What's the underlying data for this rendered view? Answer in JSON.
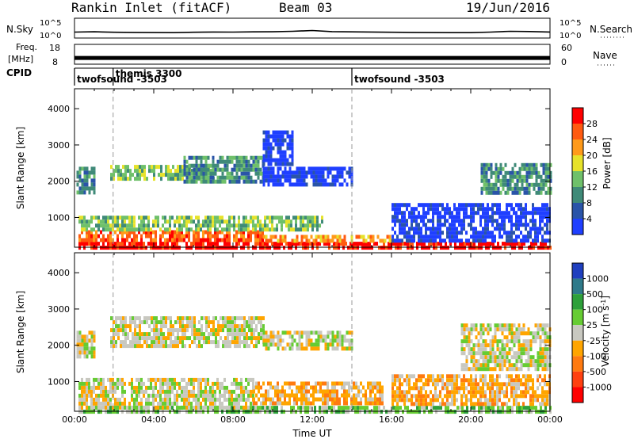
{
  "header": {
    "station": "Rankin Inlet (fitACF)",
    "beam": "Beam 03",
    "date": "19/Jun/2016"
  },
  "chart_data": [
    {
      "type": "line",
      "panel": "noise",
      "left_label": "N.Sky",
      "right_label": "N.Search",
      "left_ticks": [
        "10^5",
        "10^0"
      ],
      "right_ticks": [
        "10^5",
        "10^0"
      ],
      "y_scale": "log",
      "ylim": [
        1,
        100000
      ],
      "x_hours": [
        0,
        1,
        2,
        3,
        4,
        5,
        6,
        7,
        8,
        9,
        10,
        11,
        12,
        13,
        14,
        15,
        16,
        17,
        18,
        19,
        20,
        21,
        22,
        23,
        24
      ],
      "values": [
        20,
        25,
        18,
        16,
        15,
        14,
        18,
        22,
        20,
        24,
        26,
        35,
        60,
        28,
        24,
        22,
        18,
        16,
        15,
        14,
        14,
        20,
        35,
        30,
        22
      ]
    },
    {
      "type": "line",
      "panel": "frequency",
      "left_label_top": "Freq.",
      "left_label_bottom": "[MHz]",
      "right_label": "Nave",
      "left_ticks": [
        "18",
        "8"
      ],
      "right_ticks": [
        "60",
        "0"
      ],
      "ylim": [
        8,
        18
      ],
      "x_hours": [
        0,
        1,
        2,
        3,
        4,
        5,
        6,
        7,
        8,
        9,
        10,
        11,
        12,
        13,
        14,
        15,
        16,
        17,
        18,
        19,
        20,
        21,
        22,
        23,
        24
      ],
      "values": [
        10.8,
        10.8,
        10.8,
        10.8,
        10.8,
        10.8,
        10.8,
        10.8,
        10.8,
        10.8,
        10.8,
        10.8,
        10.8,
        10.8,
        10.8,
        10.8,
        10.8,
        10.8,
        10.8,
        10.8,
        10.8,
        10.8,
        10.8,
        10.8,
        10.8
      ]
    },
    {
      "type": "table",
      "panel": "cpid",
      "label": "CPID",
      "programs": [
        {
          "name": "twofsound -3503",
          "start_hour": 0.0
        },
        {
          "name": "themis 3300",
          "start_hour": 1.95
        },
        {
          "name": "twofsound -3503",
          "start_hour": 14.0
        }
      ]
    },
    {
      "type": "heatmap",
      "panel": "power",
      "ylabel": "Slant Range [km]",
      "xlabel": "",
      "y_ticks": [
        1000,
        2000,
        3000,
        4000
      ],
      "ylim": [
        180,
        4550
      ],
      "xlim": [
        0,
        24
      ],
      "colorbar_label": "Power [dB]",
      "colorbar_ticks": [
        4,
        8,
        12,
        16,
        20,
        24,
        28
      ],
      "colorbar_range": [
        0,
        32
      ],
      "colors": [
        "#1f3fff",
        "#2a54a8",
        "#3f8a78",
        "#6fc06a",
        "#e6e22a",
        "#ff9a1a",
        "#ff5a10",
        "#ff0000"
      ],
      "regions": [
        {
          "x": [
            0.2,
            24.0
          ],
          "y": [
            180,
            330
          ],
          "level": 7
        },
        {
          "x": [
            0.2,
            9.5
          ],
          "y": [
            330,
            650
          ],
          "level": 6
        },
        {
          "x": [
            9.5,
            16.0
          ],
          "y": [
            330,
            520
          ],
          "level": 5
        },
        {
          "x": [
            0.2,
            12.5
          ],
          "y": [
            650,
            1050
          ],
          "level": 3
        },
        {
          "x": [
            1.8,
            7.0
          ],
          "y": [
            2100,
            2450
          ],
          "level": 3
        },
        {
          "x": [
            5.5,
            9.5
          ],
          "y": [
            2000,
            2700
          ],
          "level": 2
        },
        {
          "x": [
            9.5,
            14.0
          ],
          "y": [
            1900,
            2400
          ],
          "level": 0
        },
        {
          "x": [
            9.5,
            11.0
          ],
          "y": [
            2500,
            3400
          ],
          "level": 0
        },
        {
          "x": [
            16.0,
            24.0
          ],
          "y": [
            400,
            1400
          ],
          "level": 0
        },
        {
          "x": [
            20.5,
            24.0
          ],
          "y": [
            1700,
            2500
          ],
          "level": 2
        },
        {
          "x": [
            0.1,
            1.0
          ],
          "y": [
            1700,
            2400
          ],
          "level": 2
        }
      ]
    },
    {
      "type": "heatmap",
      "panel": "velocity",
      "ylabel": "Slant Range [km]",
      "xlabel": "Time UT",
      "y_ticks": [
        1000,
        2000,
        3000,
        4000
      ],
      "ylim": [
        180,
        4550
      ],
      "xlim": [
        0,
        24
      ],
      "x_ticks": [
        "00:00",
        "04:00",
        "08:00",
        "12:00",
        "16:00",
        "20:00",
        "00:00"
      ],
      "colorbar_label": "Velocity [m s",
      "colorbar_sup": "-1",
      "colorbar_close": "]",
      "colorbar_ticks": [
        "1000",
        "500",
        "100",
        "25",
        "-25",
        "-100",
        "-500",
        "-1000"
      ],
      "colors": [
        "#1f3fbf",
        "#2f7a8a",
        "#2ea03a",
        "#66cc33",
        "#c8c8c0",
        "#ffa500",
        "#ff7a10",
        "#ff4010",
        "#ff0000"
      ],
      "regions": [
        {
          "x": [
            0.2,
            24.0
          ],
          "y": [
            180,
            330
          ],
          "level": 3
        },
        {
          "x": [
            0.2,
            9.0
          ],
          "y": [
            330,
            1100
          ],
          "level": 4
        },
        {
          "x": [
            9.0,
            15.5
          ],
          "y": [
            350,
            1000
          ],
          "level": 5
        },
        {
          "x": [
            1.8,
            9.5
          ],
          "y": [
            2000,
            2800
          ],
          "level": 4
        },
        {
          "x": [
            9.5,
            14.0
          ],
          "y": [
            1900,
            2400
          ],
          "level": 4
        },
        {
          "x": [
            19.5,
            24.0
          ],
          "y": [
            1300,
            2600
          ],
          "level": 4
        },
        {
          "x": [
            16.0,
            24.0
          ],
          "y": [
            400,
            1200
          ],
          "level": 5
        },
        {
          "x": [
            0.1,
            1.0
          ],
          "y": [
            1700,
            2400
          ],
          "level": 4
        }
      ]
    }
  ]
}
